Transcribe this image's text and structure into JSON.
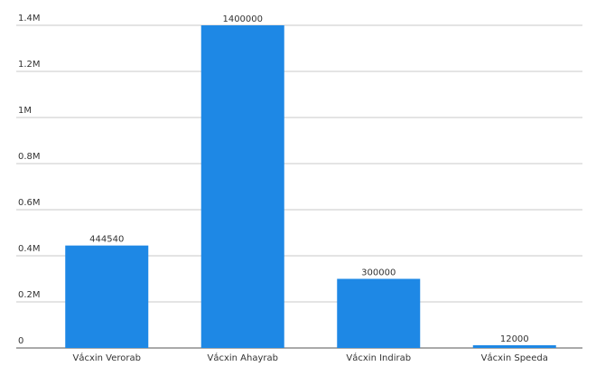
{
  "chart_data": {
    "type": "bar",
    "categories": [
      "Vắcxin Verorab",
      "Vắcxin Ahayrab",
      "Vắcxin Indirab",
      "Vắcxin Speeda"
    ],
    "values": [
      444540,
      1400000,
      300000,
      12000
    ],
    "color": "#1e88e5",
    "ylim": [
      0,
      1400000
    ],
    "yticks": [
      0,
      {
        "value": 200000,
        "label": "0.2M"
      },
      {
        "value": 400000,
        "label": "0.4M"
      },
      {
        "value": 600000,
        "label": "0.6M"
      },
      {
        "value": 800000,
        "label": "0.8M"
      },
      {
        "value": 1000000,
        "label": "1M"
      },
      {
        "value": 1200000,
        "label": "1.2M"
      },
      {
        "value": 1400000,
        "label": "1.4M"
      }
    ],
    "grid": true
  }
}
